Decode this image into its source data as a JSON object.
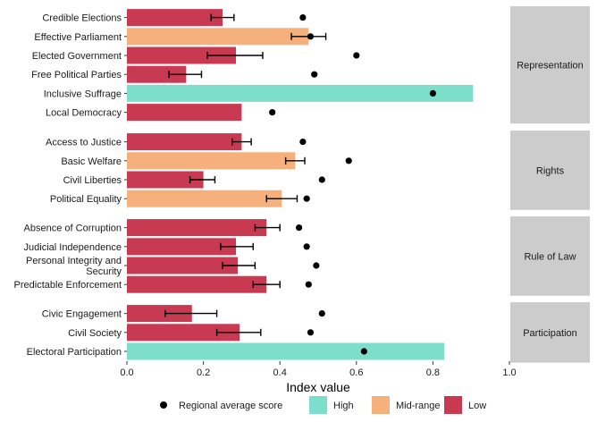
{
  "chart_data": {
    "type": "bar",
    "orientation": "horizontal",
    "xlabel": "Index value",
    "xlim": [
      0,
      1
    ],
    "xticks": [
      "0.0",
      "0.2",
      "0.4",
      "0.6",
      "0.8",
      "1.0"
    ],
    "grid": false,
    "legend_position": "bottom",
    "legend": {
      "point_label": "Regional average score",
      "categories": [
        {
          "key": "High",
          "label": "High",
          "color": "#7ddfcb"
        },
        {
          "key": "Mid",
          "label": "Mid-range",
          "color": "#f5b07c"
        },
        {
          "key": "Low",
          "label": "Low",
          "color": "#c73a52"
        }
      ]
    },
    "panels": [
      {
        "name": "Representation",
        "rows": [
          {
            "label": "Credible Elections",
            "value": 0.25,
            "err_low": 0.22,
            "err_high": 0.28,
            "regional_avg": 0.46,
            "category": "Low"
          },
          {
            "label": "Effective Parliament",
            "value": 0.475,
            "err_low": 0.43,
            "err_high": 0.52,
            "regional_avg": 0.48,
            "category": "Mid"
          },
          {
            "label": "Elected Government",
            "value": 0.285,
            "err_low": 0.21,
            "err_high": 0.355,
            "regional_avg": 0.6,
            "category": "Low"
          },
          {
            "label": "Free Political Parties",
            "value": 0.155,
            "err_low": 0.11,
            "err_high": 0.195,
            "regional_avg": 0.49,
            "category": "Low"
          },
          {
            "label": "Inclusive Suffrage",
            "value": 0.905,
            "err_low": null,
            "err_high": null,
            "regional_avg": 0.8,
            "category": "High"
          },
          {
            "label": "Local Democracy",
            "value": 0.3,
            "err_low": null,
            "err_high": null,
            "regional_avg": 0.38,
            "category": "Low"
          }
        ]
      },
      {
        "name": "Rights",
        "rows": [
          {
            "label": "Access to Justice",
            "value": 0.3,
            "err_low": 0.275,
            "err_high": 0.325,
            "regional_avg": 0.46,
            "category": "Low"
          },
          {
            "label": "Basic Welfare",
            "value": 0.44,
            "err_low": 0.415,
            "err_high": 0.465,
            "regional_avg": 0.58,
            "category": "Mid"
          },
          {
            "label": "Civil Liberties",
            "value": 0.2,
            "err_low": 0.165,
            "err_high": 0.23,
            "regional_avg": 0.51,
            "category": "Low"
          },
          {
            "label": "Political Equality",
            "value": 0.405,
            "err_low": 0.365,
            "err_high": 0.445,
            "regional_avg": 0.47,
            "category": "Mid"
          }
        ]
      },
      {
        "name": "Rule of Law",
        "rows": [
          {
            "label": "Absence of Corruption",
            "value": 0.365,
            "err_low": 0.335,
            "err_high": 0.4,
            "regional_avg": 0.45,
            "category": "Low"
          },
          {
            "label": "Judicial Independence",
            "value": 0.285,
            "err_low": 0.245,
            "err_high": 0.33,
            "regional_avg": 0.47,
            "category": "Low"
          },
          {
            "label": "Personal Integrity and Security",
            "label_lines": [
              "Personal Integrity and",
              "Security"
            ],
            "value": 0.29,
            "err_low": 0.25,
            "err_high": 0.335,
            "regional_avg": 0.495,
            "category": "Low"
          },
          {
            "label": "Predictable Enforcement",
            "value": 0.365,
            "err_low": 0.33,
            "err_high": 0.4,
            "regional_avg": 0.475,
            "category": "Low"
          }
        ]
      },
      {
        "name": "Participation",
        "rows": [
          {
            "label": "Civic Engagement",
            "value": 0.17,
            "err_low": 0.1,
            "err_high": 0.235,
            "regional_avg": 0.51,
            "category": "Low"
          },
          {
            "label": "Civil Society",
            "value": 0.295,
            "err_low": 0.235,
            "err_high": 0.35,
            "regional_avg": 0.48,
            "category": "Low"
          },
          {
            "label": "Electoral Participation",
            "value": 0.83,
            "err_low": null,
            "err_high": null,
            "regional_avg": 0.62,
            "category": "High"
          }
        ]
      }
    ]
  }
}
